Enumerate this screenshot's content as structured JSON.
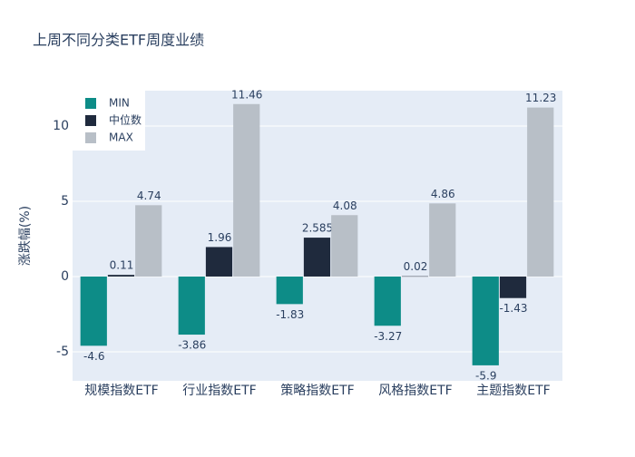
{
  "chart_data": {
    "type": "bar",
    "title": "上周不同分类ETF周度业绩",
    "y_label": "涨跌幅(%)",
    "categories": [
      "规模指数ETF",
      "行业指数ETF",
      "策略指数ETF",
      "风格指数ETF",
      "主题指数ETF"
    ],
    "series": [
      {
        "name": "MIN",
        "color": "#0d8c87",
        "values": [
          -4.6,
          -3.86,
          -1.83,
          -3.27,
          -5.9
        ]
      },
      {
        "name": "中位数",
        "color": "#1f2a3d",
        "values": [
          0.11,
          1.96,
          2.585,
          0.02,
          -1.43
        ]
      },
      {
        "name": "MAX",
        "color": "#b8bfc7",
        "values": [
          4.74,
          11.46,
          4.08,
          4.86,
          11.23
        ]
      }
    ],
    "ylim": [
      -6.93,
      12.35
    ],
    "yticks": [
      -5,
      0,
      5,
      10
    ],
    "grid": true,
    "legend": "top-left"
  }
}
